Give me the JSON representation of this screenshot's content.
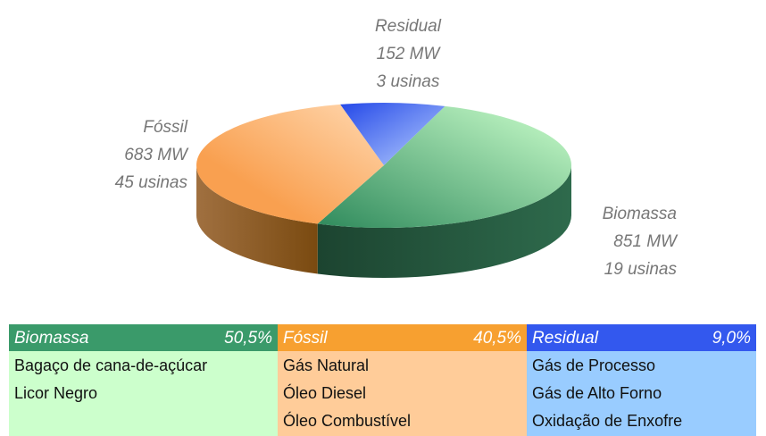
{
  "chart_data": {
    "type": "pie",
    "categories": [
      "Biomassa",
      "Fóssil",
      "Residual"
    ],
    "values": [
      851,
      683,
      152
    ],
    "value_labels": [
      "851 MW",
      "683 MW",
      "152 MW"
    ],
    "plant_labels": [
      "19 usinas",
      "45 usinas",
      "3 usinas"
    ],
    "colors": [
      "#3a9a6a",
      "#f7a040",
      "#2a50e8"
    ]
  },
  "table": {
    "columns": [
      {
        "name": "Biomassa",
        "share": "50,5%",
        "items": [
          "Bagaço de cana-de-açúcar",
          "Licor Negro"
        ]
      },
      {
        "name": "Fóssil",
        "share": "40,5%",
        "items": [
          "Gás Natural",
          "Óleo Diesel",
          "Óleo Combustível"
        ]
      },
      {
        "name": "Residual",
        "share": "9,0%",
        "items": [
          "Gás de Processo",
          "Gás de Alto Forno",
          "Oxidação de Enxofre"
        ]
      }
    ]
  }
}
